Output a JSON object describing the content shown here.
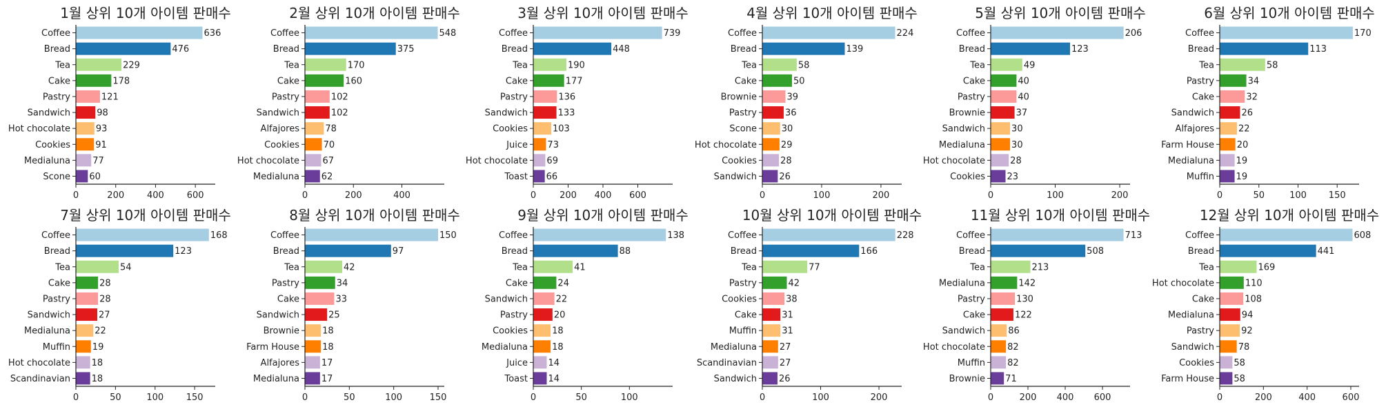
{
  "palette": [
    "#a6cee3",
    "#1f78b4",
    "#b2df8a",
    "#33a02c",
    "#fb9a99",
    "#e31a1c",
    "#fdbf6f",
    "#ff7f00",
    "#cab2d6",
    "#6a3d9a"
  ],
  "chart_data": [
    {
      "type": "bar",
      "orientation": "horizontal",
      "title": "1월 상위 10개 아이템 판매수",
      "categories": [
        "Coffee",
        "Bread",
        "Tea",
        "Cake",
        "Pastry",
        "Sandwich",
        "Hot chocolate",
        "Cookies",
        "Medialuna",
        "Scone"
      ],
      "values": [
        636,
        476,
        229,
        178,
        121,
        98,
        93,
        91,
        77,
        60
      ],
      "xlim": [
        0,
        700
      ],
      "xticks": [
        0,
        200,
        400,
        600
      ]
    },
    {
      "type": "bar",
      "orientation": "horizontal",
      "title": "2월 상위 10개 아이템 판매수",
      "categories": [
        "Coffee",
        "Bread",
        "Tea",
        "Cake",
        "Pastry",
        "Sandwich",
        "Alfajores",
        "Cookies",
        "Hot chocolate",
        "Medialuna"
      ],
      "values": [
        548,
        375,
        170,
        160,
        102,
        102,
        78,
        70,
        67,
        62
      ],
      "xlim": [
        0,
        575
      ],
      "xticks": [
        0,
        200,
        400
      ]
    },
    {
      "type": "bar",
      "orientation": "horizontal",
      "title": "3월 상위 10개 아이템 판매수",
      "categories": [
        "Coffee",
        "Bread",
        "Tea",
        "Cake",
        "Pastry",
        "Sandwich",
        "Cookies",
        "Juice",
        "Hot chocolate",
        "Toast"
      ],
      "values": [
        739,
        448,
        190,
        177,
        136,
        133,
        103,
        73,
        69,
        66
      ],
      "xlim": [
        0,
        800
      ],
      "xticks": [
        0,
        200,
        400,
        600
      ]
    },
    {
      "type": "bar",
      "orientation": "horizontal",
      "title": "4월 상위 10개 아이템 판매수",
      "categories": [
        "Coffee",
        "Bread",
        "Tea",
        "Cake",
        "Brownie",
        "Pastry",
        "Scone",
        "Hot chocolate",
        "Cookies",
        "Sandwich"
      ],
      "values": [
        224,
        139,
        58,
        50,
        39,
        36,
        30,
        29,
        28,
        26
      ],
      "xlim": [
        0,
        235
      ],
      "xticks": [
        0,
        100,
        200
      ]
    },
    {
      "type": "bar",
      "orientation": "horizontal",
      "title": "5월 상위 10개 아이템 판매수",
      "categories": [
        "Coffee",
        "Bread",
        "Tea",
        "Cake",
        "Pastry",
        "Brownie",
        "Sandwich",
        "Medialuna",
        "Hot chocolate",
        "Cookies"
      ],
      "values": [
        206,
        123,
        49,
        40,
        40,
        37,
        30,
        30,
        28,
        23
      ],
      "xlim": [
        0,
        216
      ],
      "xticks": [
        0,
        100,
        200
      ]
    },
    {
      "type": "bar",
      "orientation": "horizontal",
      "title": "6월 상위 10개 아이템 판매수",
      "categories": [
        "Coffee",
        "Bread",
        "Tea",
        "Pastry",
        "Cake",
        "Sandwich",
        "Alfajores",
        "Farm House",
        "Medialuna",
        "Muffin"
      ],
      "values": [
        170,
        113,
        58,
        34,
        32,
        26,
        22,
        20,
        19,
        19
      ],
      "xlim": [
        0,
        178
      ],
      "xticks": [
        0,
        50,
        100,
        150
      ]
    },
    {
      "type": "bar",
      "orientation": "horizontal",
      "title": "7월 상위 10개 아이템 판매수",
      "categories": [
        "Coffee",
        "Bread",
        "Tea",
        "Cake",
        "Pastry",
        "Sandwich",
        "Medialuna",
        "Muffin",
        "Hot chocolate",
        "Scandinavian"
      ],
      "values": [
        168,
        123,
        54,
        28,
        28,
        27,
        22,
        19,
        18,
        18
      ],
      "xlim": [
        0,
        176
      ],
      "xticks": [
        0,
        50,
        100,
        150
      ]
    },
    {
      "type": "bar",
      "orientation": "horizontal",
      "title": "8월 상위 10개 아이템 판매수",
      "categories": [
        "Coffee",
        "Bread",
        "Tea",
        "Pastry",
        "Cake",
        "Sandwich",
        "Brownie",
        "Farm House",
        "Alfajores",
        "Medialuna"
      ],
      "values": [
        150,
        97,
        42,
        34,
        33,
        25,
        18,
        18,
        17,
        17
      ],
      "xlim": [
        0,
        157
      ],
      "xticks": [
        0,
        50,
        100,
        150
      ]
    },
    {
      "type": "bar",
      "orientation": "horizontal",
      "title": "9월 상위 10개 아이템 판매수",
      "categories": [
        "Coffee",
        "Bread",
        "Tea",
        "Cake",
        "Sandwich",
        "Pastry",
        "Cookies",
        "Medialuna",
        "Juice",
        "Toast"
      ],
      "values": [
        138,
        88,
        41,
        24,
        22,
        20,
        18,
        18,
        14,
        14
      ],
      "xlim": [
        0,
        145
      ],
      "xticks": [
        0,
        50,
        100
      ]
    },
    {
      "type": "bar",
      "orientation": "horizontal",
      "title": "10월 상위 10개 아이템 판매수",
      "categories": [
        "Coffee",
        "Bread",
        "Tea",
        "Pastry",
        "Cookies",
        "Cake",
        "Muffin",
        "Medialuna",
        "Scandinavian",
        "Sandwich"
      ],
      "values": [
        228,
        166,
        77,
        42,
        38,
        31,
        31,
        27,
        27,
        26
      ],
      "xlim": [
        0,
        239
      ],
      "xticks": [
        0,
        100,
        200
      ]
    },
    {
      "type": "bar",
      "orientation": "horizontal",
      "title": "11월 상위 10개 아이템 판매수",
      "categories": [
        "Coffee",
        "Bread",
        "Tea",
        "Medialuna",
        "Pastry",
        "Cake",
        "Sandwich",
        "Hot chocolate",
        "Muffin",
        "Brownie"
      ],
      "values": [
        713,
        508,
        213,
        142,
        130,
        122,
        86,
        82,
        82,
        71
      ],
      "xlim": [
        0,
        748
      ],
      "xticks": [
        0,
        200,
        400,
        600
      ]
    },
    {
      "type": "bar",
      "orientation": "horizontal",
      "title": "12월 상위 10개 아이템 판매수",
      "categories": [
        "Coffee",
        "Bread",
        "Tea",
        "Hot chocolate",
        "Cake",
        "Medialuna",
        "Pastry",
        "Sandwich",
        "Cookies",
        "Farm House"
      ],
      "values": [
        608,
        441,
        169,
        110,
        108,
        94,
        92,
        78,
        58,
        58
      ],
      "xlim": [
        0,
        638
      ],
      "xticks": [
        0,
        200,
        400,
        600
      ]
    }
  ]
}
